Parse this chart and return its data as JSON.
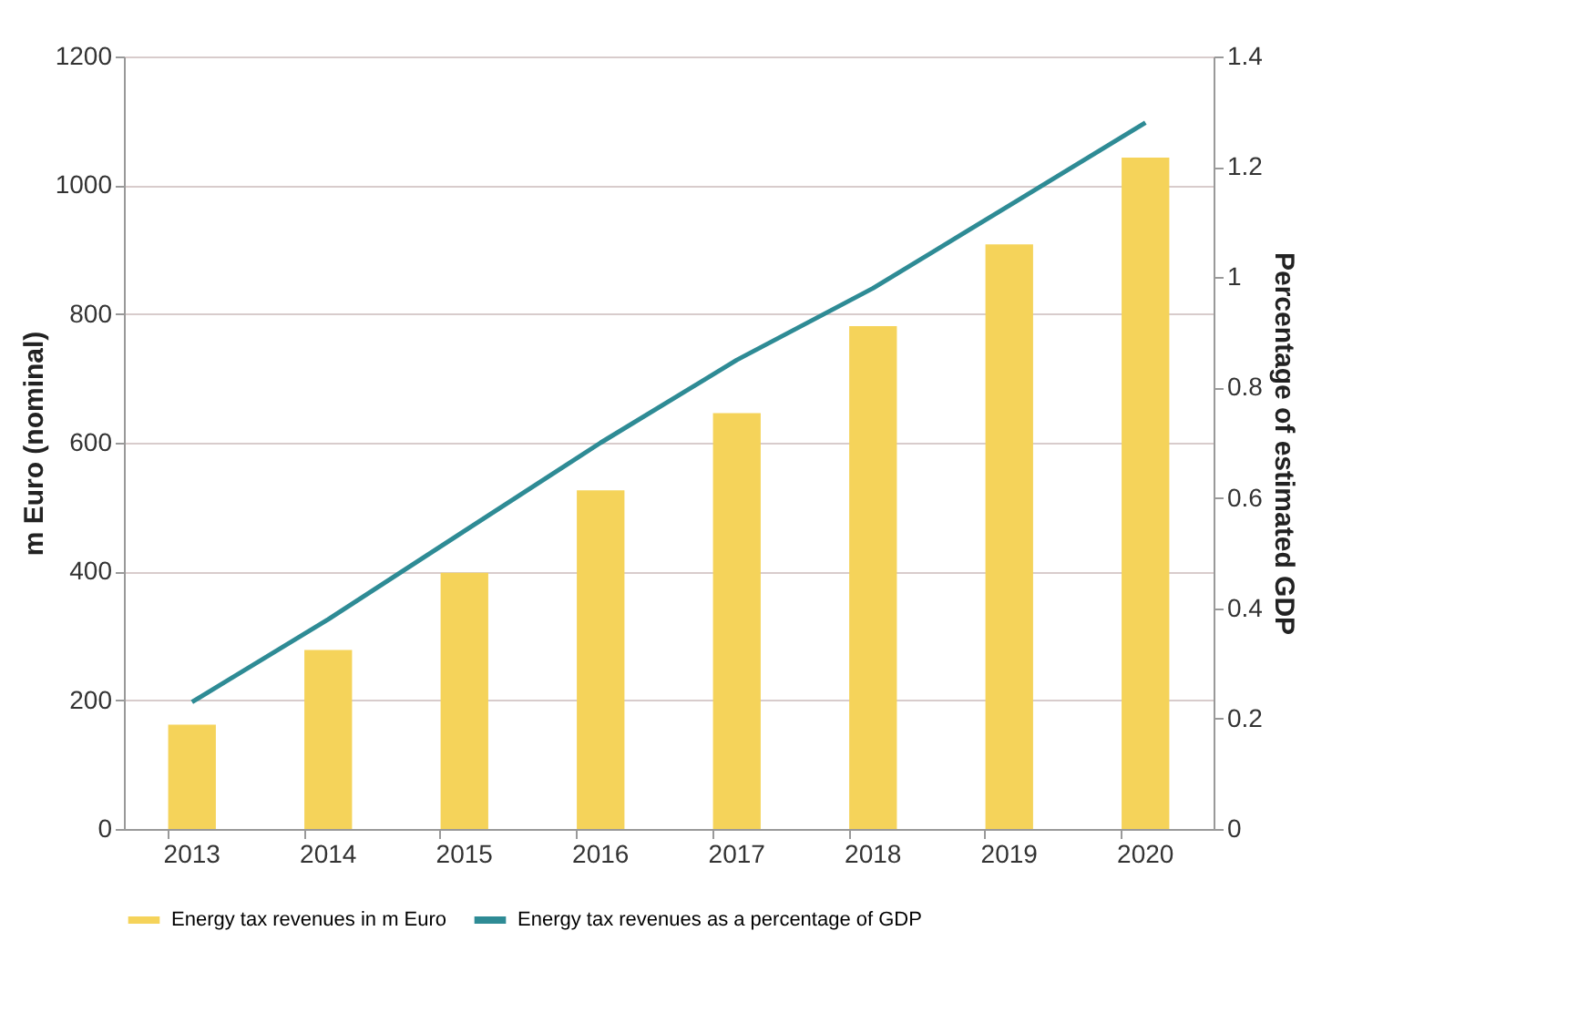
{
  "chart_data": {
    "type": "bar",
    "categories": [
      "2013",
      "2014",
      "2015",
      "2016",
      "2017",
      "2018",
      "2019",
      "2020"
    ],
    "series": [
      {
        "name": "Energy tax revenues in m Euro",
        "color": "#f5d35a",
        "values": [
          162,
          278,
          398,
          526,
          646,
          781,
          908,
          1043
        ]
      },
      {
        "name": "Energy tax revenues as a percentage of GDP",
        "type": "line",
        "axis": "y2",
        "color": "#2e8b95",
        "values": [
          0.23,
          0.38,
          0.54,
          0.7,
          0.85,
          0.98,
          1.13,
          1.28
        ]
      }
    ],
    "ylabel": "m Euro (nominal)",
    "y2label": "Percentage of estimated GDP",
    "ylim": [
      0,
      1200
    ],
    "yticks": [
      0,
      200,
      400,
      600,
      800,
      1000,
      1200
    ],
    "y2lim": [
      0,
      1.4
    ],
    "y2ticks": [
      0,
      0.2,
      0.4,
      0.6,
      0.8,
      1,
      1.2,
      1.4
    ],
    "grid": "y",
    "legend": "bottom"
  }
}
